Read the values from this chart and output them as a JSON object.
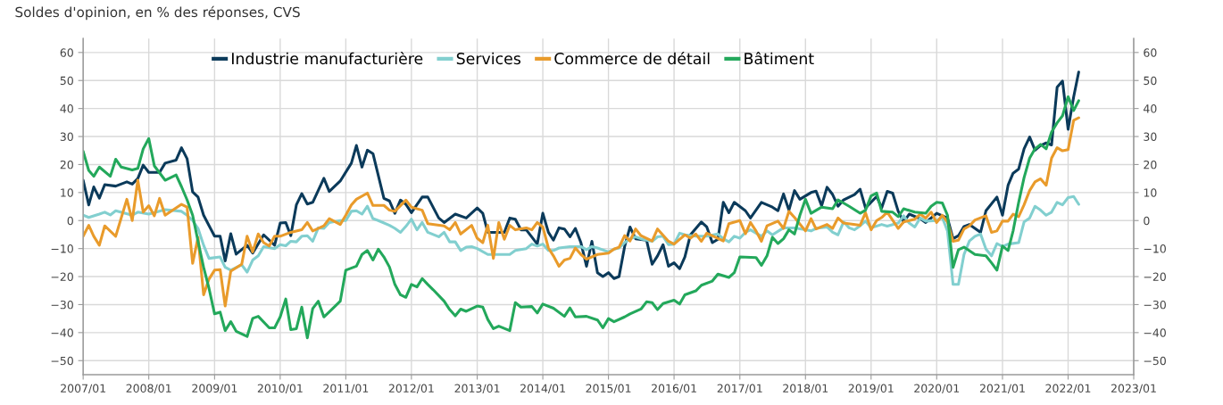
{
  "chart_data": {
    "type": "line",
    "title": "Soldes d'opinion, en % des réponses, CVS",
    "xlim": [
      "2007-01",
      "2023-01"
    ],
    "xticks": [
      {
        "value": "2007-01",
        "label": "2007/01"
      },
      {
        "value": "2008-01",
        "label": "2008/01"
      },
      {
        "value": "2009-01",
        "label": "2009/01"
      },
      {
        "value": "2010-01",
        "label": "2010/01"
      },
      {
        "value": "2011-01",
        "label": "2011/01"
      },
      {
        "value": "2012-01",
        "label": "2012/01"
      },
      {
        "value": "2013-01",
        "label": "2013/01"
      },
      {
        "value": "2014-01",
        "label": "2014/01"
      },
      {
        "value": "2015-01",
        "label": "2015/01"
      },
      {
        "value": "2016-01",
        "label": "2016/01"
      },
      {
        "value": "2017-01",
        "label": "2017/01"
      },
      {
        "value": "2018-01",
        "label": "2018/01"
      },
      {
        "value": "2019-01",
        "label": "2019/01"
      },
      {
        "value": "2020-01",
        "label": "2020/01"
      },
      {
        "value": "2021-01",
        "label": "2021/01"
      },
      {
        "value": "2022-01",
        "label": "2022/01"
      },
      {
        "value": "2023-01",
        "label": "2023/01"
      }
    ],
    "ylim": [
      -55,
      65
    ],
    "yticks": [
      {
        "value": -50,
        "label": "−50"
      },
      {
        "value": -40,
        "label": "−40"
      },
      {
        "value": -30,
        "label": "−30"
      },
      {
        "value": -20,
        "label": "−20"
      },
      {
        "value": -10,
        "label": "−10"
      },
      0,
      10,
      20,
      30,
      40,
      50,
      60
    ],
    "y2lim": [
      -55,
      65
    ],
    "y2ticks": [
      {
        "value": -50,
        "label": "−50"
      },
      {
        "value": -40,
        "label": "−40"
      },
      {
        "value": -30,
        "label": "−30"
      },
      {
        "value": -20,
        "label": "−20"
      },
      {
        "value": -10,
        "label": "−10"
      },
      0,
      10,
      20,
      30,
      40,
      50,
      60
    ],
    "grid": true,
    "legend": "top",
    "series": [
      {
        "name": "Industrie manufacturière",
        "color": "#0b3a5a",
        "x": [
          "2007-01",
          "2007-02",
          "2007-03",
          "2007-04",
          "2007-05",
          "2007-07",
          "2007-09",
          "2007-10",
          "2007-11",
          "2007-12",
          "2008-01",
          "2008-03",
          "2008-04",
          "2008-06",
          "2008-07",
          "2008-08",
          "2008-09",
          "2008-10",
          "2008-11",
          "2009-01",
          "2009-02",
          "2009-03",
          "2009-04",
          "2009-05",
          "2009-07",
          "2009-08",
          "2009-10",
          "2009-12",
          "2010-01",
          "2010-02",
          "2010-03",
          "2010-04",
          "2010-05",
          "2010-06",
          "2010-07",
          "2010-09",
          "2010-10",
          "2010-12",
          "2011-02",
          "2011-03",
          "2011-04",
          "2011-05",
          "2011-06",
          "2011-08",
          "2011-09",
          "2011-10",
          "2011-11",
          "2011-12",
          "2012-01",
          "2012-03",
          "2012-04",
          "2012-06",
          "2012-07",
          "2012-09",
          "2012-11",
          "2013-01",
          "2013-02",
          "2013-03",
          "2013-06",
          "2013-07",
          "2013-08",
          "2013-09",
          "2013-10",
          "2013-12",
          "2014-01",
          "2014-02",
          "2014-03",
          "2014-04",
          "2014-05",
          "2014-06",
          "2014-07",
          "2014-08",
          "2014-09",
          "2014-10",
          "2014-11",
          "2014-12",
          "2015-01",
          "2015-02",
          "2015-03",
          "2015-04",
          "2015-05",
          "2015-06",
          "2015-08",
          "2015-09",
          "2015-10",
          "2015-11",
          "2015-12",
          "2016-01",
          "2016-02",
          "2016-03",
          "2016-04",
          "2016-06",
          "2016-07",
          "2016-08",
          "2016-09",
          "2016-10",
          "2016-11",
          "2016-12",
          "2017-02",
          "2017-03",
          "2017-05",
          "2017-07",
          "2017-08",
          "2017-09",
          "2017-10",
          "2017-11",
          "2017-12",
          "2018-02",
          "2018-03",
          "2018-04",
          "2018-05",
          "2018-06",
          "2018-07",
          "2018-08",
          "2018-10",
          "2018-11",
          "2018-12",
          "2019-02",
          "2019-03",
          "2019-04",
          "2019-05",
          "2019-06",
          "2019-07",
          "2019-08",
          "2019-10",
          "2019-11",
          "2020-01",
          "2020-03",
          "2020-04",
          "2020-05",
          "2020-06",
          "2020-07",
          "2020-09",
          "2020-10",
          "2020-12",
          "2021-01",
          "2021-02",
          "2021-03",
          "2021-04",
          "2021-05",
          "2021-06",
          "2021-07",
          "2021-08",
          "2021-09",
          "2021-10",
          "2021-11",
          "2021-12",
          "2022-01",
          "2022-02",
          "2022-03"
        ],
        "values": [
          14.4,
          5.6,
          12,
          8,
          12.8,
          12.3,
          13.8,
          13,
          15,
          19.8,
          17.2,
          17.2,
          20.5,
          21.6,
          26,
          22.1,
          10.2,
          8.4,
          1.9,
          -5.6,
          -5.6,
          -14.4,
          -4.7,
          -12,
          -8.8,
          -11.6,
          -5.1,
          -8.8,
          -0.9,
          -0.7,
          -5.4,
          5.6,
          9.6,
          5.9,
          6.5,
          15.1,
          10.4,
          14.1,
          20.5,
          26.8,
          19.1,
          25.1,
          23.9,
          7.9,
          7,
          2.6,
          7.3,
          5.8,
          2.8,
          8.4,
          8.4,
          0.9,
          -0.7,
          2.3,
          0.9,
          4.5,
          2.6,
          -4.2,
          -4.2,
          0.9,
          0.5,
          -3.3,
          -3.3,
          -8.4,
          2.6,
          -4.2,
          -7,
          -2.6,
          -3,
          -5.8,
          -2.8,
          -7.9,
          -16.3,
          -7.4,
          -18.6,
          -20,
          -18.6,
          -20.7,
          -20,
          -9.3,
          -2.3,
          -6.5,
          -7,
          -15.6,
          -12.6,
          -8.6,
          -16.3,
          -15.1,
          -17.2,
          -13,
          -5.1,
          -0.5,
          -2.3,
          -7.9,
          -6.7,
          6.5,
          2.8,
          6.5,
          3.5,
          0.9,
          6.5,
          4.8,
          3.5,
          9.5,
          3.7,
          10.7,
          7.6,
          10,
          10.5,
          5.3,
          11.9,
          9.3,
          5.1,
          7.4,
          9.3,
          11.2,
          4.5,
          8.6,
          4.5,
          10.4,
          9.8,
          3.3,
          -0.5,
          2.3,
          0.7,
          -0.7,
          2.6,
          0.9,
          -6.5,
          -5.4,
          -2.1,
          -1.4,
          -4.2,
          3.5,
          8.4,
          1.9,
          12.6,
          16.9,
          18.4,
          25.6,
          29.8,
          25.1,
          26.8,
          27.7,
          27,
          47.6,
          49.8,
          32.6,
          44.2,
          53
        ]
      },
      {
        "name": "Services",
        "color": "#82cfcf",
        "x": [
          "2007-01",
          "2007-02",
          "2007-04",
          "2007-05",
          "2007-06",
          "2007-07",
          "2007-10",
          "2007-11",
          "2008-01",
          "2008-04",
          "2008-07",
          "2008-08",
          "2008-09",
          "2008-10",
          "2008-11",
          "2008-12",
          "2009-02",
          "2009-03",
          "2009-04",
          "2009-06",
          "2009-07",
          "2009-08",
          "2009-09",
          "2009-10",
          "2009-12",
          "2010-01",
          "2010-02",
          "2010-03",
          "2010-04",
          "2010-05",
          "2010-06",
          "2010-07",
          "2010-08",
          "2010-09",
          "2010-10",
          "2010-12",
          "2011-01",
          "2011-02",
          "2011-03",
          "2011-04",
          "2011-05",
          "2011-06",
          "2011-07",
          "2011-09",
          "2011-10",
          "2011-11",
          "2011-12",
          "2012-01",
          "2012-02",
          "2012-03",
          "2012-04",
          "2012-06",
          "2012-07",
          "2012-08",
          "2012-09",
          "2012-10",
          "2012-11",
          "2012-12",
          "2013-01",
          "2013-03",
          "2013-05",
          "2013-07",
          "2013-08",
          "2013-10",
          "2013-11",
          "2013-12",
          "2014-01",
          "2014-02",
          "2014-03",
          "2014-04",
          "2014-06",
          "2014-08",
          "2014-09",
          "2014-10",
          "2014-11",
          "2015-01",
          "2015-02",
          "2015-03",
          "2015-04",
          "2015-05",
          "2015-06",
          "2015-07",
          "2015-09",
          "2015-10",
          "2015-11",
          "2015-12",
          "2016-01",
          "2016-02",
          "2016-03",
          "2016-05",
          "2016-07",
          "2016-09",
          "2016-10",
          "2016-11",
          "2016-12",
          "2017-01",
          "2017-02",
          "2017-03",
          "2017-05",
          "2017-06",
          "2017-07",
          "2017-09",
          "2017-11",
          "2018-01",
          "2018-02",
          "2018-03",
          "2018-05",
          "2018-06",
          "2018-07",
          "2018-08",
          "2018-09",
          "2018-10",
          "2018-11",
          "2018-12",
          "2019-01",
          "2019-03",
          "2019-04",
          "2019-06",
          "2019-07",
          "2019-08",
          "2019-09",
          "2019-10",
          "2019-11",
          "2020-01",
          "2020-02",
          "2020-03",
          "2020-04",
          "2020-05",
          "2020-06",
          "2020-07",
          "2020-08",
          "2020-09",
          "2020-10",
          "2020-11",
          "2020-12",
          "2021-01",
          "2021-02",
          "2021-04",
          "2021-05",
          "2021-06",
          "2021-07",
          "2021-08",
          "2021-09",
          "2021-10",
          "2021-11",
          "2021-12",
          "2022-01",
          "2022-02",
          "2022-03"
        ],
        "values": [
          1.9,
          1.1,
          2.3,
          3,
          2,
          3.5,
          1.9,
          3,
          2.3,
          3.9,
          3.3,
          1.9,
          0,
          -2.8,
          -8.8,
          -13.5,
          -13,
          -16.7,
          -17.7,
          -15.8,
          -18.4,
          -14.1,
          -12.6,
          -9.3,
          -10,
          -8.6,
          -9,
          -7.4,
          -7.6,
          -5.6,
          -5.4,
          -7.4,
          -2.6,
          -2.8,
          -0.7,
          0,
          0,
          3.3,
          3.5,
          2.3,
          5.1,
          0.7,
          0,
          -1.7,
          -2.8,
          -4.2,
          -2.1,
          0.5,
          -3.3,
          -0.7,
          -4.2,
          -5.8,
          -4.2,
          -7.6,
          -7.6,
          -10.7,
          -9.5,
          -9.3,
          -10,
          -12.1,
          -12.1,
          -12.1,
          -10.7,
          -10,
          -8.4,
          -9.1,
          -8.4,
          -10.7,
          -10.7,
          -9.8,
          -9.3,
          -9.3,
          -10.4,
          -9.3,
          -9.8,
          -11.2,
          -10.2,
          -9.8,
          -7.9,
          -6.5,
          -5.8,
          -6.5,
          -7.4,
          -5.8,
          -5.6,
          -8.6,
          -8.4,
          -4.5,
          -5.1,
          -5.6,
          -5.6,
          -4.8,
          -6.5,
          -7.6,
          -5.6,
          -6.3,
          -4.2,
          -3.3,
          -5.6,
          -3.7,
          -5.1,
          -2.6,
          -2.6,
          -3.3,
          -3.7,
          -2.8,
          -2.3,
          -4.2,
          -5.1,
          -0.5,
          -2.6,
          -3.3,
          -1.9,
          -0.2,
          -2.6,
          -1.4,
          -2,
          -0.9,
          1.7,
          -0.9,
          -2.3,
          0.9,
          -0.2,
          0,
          1.1,
          -3.7,
          -22.8,
          -22.8,
          -12.1,
          -7.3,
          -5.6,
          -4.8,
          -10.2,
          -12.6,
          -8.2,
          -9.3,
          -8.4,
          -7.9,
          -0.5,
          0.9,
          5.1,
          3.7,
          1.9,
          3,
          6.5,
          5.6,
          8.2,
          8.6,
          5.8
        ]
      },
      {
        "name": "Commerce de détail",
        "color": "#e99b2b",
        "x": [
          "2007-01",
          "2007-02",
          "2007-03",
          "2007-04",
          "2007-05",
          "2007-07",
          "2007-09",
          "2007-10",
          "2007-11",
          "2007-12",
          "2008-01",
          "2008-02",
          "2008-03",
          "2008-04",
          "2008-07",
          "2008-08",
          "2008-09",
          "2008-10",
          "2008-11",
          "2008-12",
          "2009-01",
          "2009-02",
          "2009-03",
          "2009-04",
          "2009-06",
          "2009-07",
          "2009-08",
          "2009-09",
          "2009-10",
          "2009-11",
          "2009-12",
          "2010-01",
          "2010-03",
          "2010-05",
          "2010-06",
          "2010-07",
          "2010-09",
          "2010-10",
          "2010-12",
          "2011-01",
          "2011-02",
          "2011-03",
          "2011-05",
          "2011-06",
          "2011-08",
          "2011-09",
          "2011-10",
          "2011-12",
          "2012-01",
          "2012-03",
          "2012-04",
          "2012-07",
          "2012-08",
          "2012-09",
          "2012-10",
          "2012-12",
          "2013-01",
          "2013-02",
          "2013-03",
          "2013-04",
          "2013-05",
          "2013-06",
          "2013-07",
          "2013-08",
          "2013-10",
          "2013-11",
          "2013-12",
          "2014-01",
          "2014-02",
          "2014-03",
          "2014-04",
          "2014-05",
          "2014-06",
          "2014-07",
          "2014-08",
          "2014-09",
          "2014-11",
          "2015-01",
          "2015-02",
          "2015-03",
          "2015-04",
          "2015-05",
          "2015-06",
          "2015-07",
          "2015-09",
          "2015-10",
          "2015-12",
          "2016-01",
          "2016-03",
          "2016-04",
          "2016-05",
          "2016-06",
          "2016-07",
          "2016-10",
          "2016-11",
          "2017-01",
          "2017-02",
          "2017-03",
          "2017-04",
          "2017-05",
          "2017-06",
          "2017-08",
          "2017-09",
          "2017-10",
          "2017-11",
          "2018-01",
          "2018-02",
          "2018-03",
          "2018-05",
          "2018-06",
          "2018-07",
          "2018-08",
          "2018-11",
          "2018-12",
          "2019-01",
          "2019-02",
          "2019-03",
          "2019-04",
          "2019-06",
          "2019-07",
          "2019-09",
          "2019-10",
          "2019-11",
          "2019-12",
          "2020-01",
          "2020-02",
          "2020-03",
          "2020-04",
          "2020-05",
          "2020-06",
          "2020-07",
          "2020-08",
          "2020-10",
          "2020-11",
          "2020-12",
          "2021-01",
          "2021-02",
          "2021-03",
          "2021-04",
          "2021-05",
          "2021-06",
          "2021-07",
          "2021-08",
          "2021-09",
          "2021-10",
          "2021-11",
          "2021-12",
          "2022-01",
          "2022-02",
          "2022-03"
        ],
        "values": [
          -5.6,
          -1.7,
          -5.6,
          -8.8,
          -1.9,
          -5.6,
          7.6,
          0,
          14.4,
          3,
          5.3,
          1.7,
          7.9,
          1.9,
          5.8,
          4.8,
          -15.3,
          -6,
          -26.5,
          -20.9,
          -17.7,
          -17.5,
          -30.5,
          -18.1,
          -15.6,
          -5.6,
          -11.2,
          -4.8,
          -7.9,
          -9.1,
          -5.6,
          -5.6,
          -4.2,
          -3.3,
          -0.7,
          -3.7,
          -1.9,
          0.7,
          -1.4,
          1.9,
          5.6,
          7.6,
          9.8,
          5.4,
          5.4,
          3.7,
          3.3,
          7.3,
          4.8,
          3.7,
          -1.1,
          -1.9,
          -3.3,
          -0.7,
          -4.8,
          -1.7,
          -6.3,
          -7.9,
          -1.7,
          -13.5,
          -0.7,
          -6.7,
          -1.7,
          -3.3,
          -2.6,
          -3.3,
          -0.7,
          -2.3,
          -9.8,
          -12.6,
          -16.3,
          -14.1,
          -13.5,
          -9.8,
          -12.1,
          -13.8,
          -12.1,
          -11.6,
          -10.2,
          -9.5,
          -5.4,
          -7.3,
          -3,
          -5.4,
          -7.3,
          -3,
          -7.4,
          -8.4,
          -5.1,
          -6.3,
          -4.8,
          -7.4,
          -4.5,
          -7.3,
          -1.1,
          0,
          -4.7,
          -0.7,
          -3.7,
          -7.4,
          -1.9,
          -0.2,
          -2.8,
          3.3,
          1.1,
          -3.7,
          0.7,
          -3,
          -1.4,
          -2.8,
          0.9,
          -0.9,
          -1.7,
          2.8,
          -3.3,
          0,
          1.1,
          3,
          -2.8,
          -0.5,
          0.5,
          2.3,
          0.9,
          3,
          -0.7,
          1.9,
          -0.5,
          -7.4,
          -7,
          -3,
          -1.9,
          0.2,
          1.7,
          -4.2,
          -3.7,
          -0.2,
          -0.2,
          2.3,
          1.4,
          5.6,
          10.7,
          13.8,
          14.9,
          12.6,
          22.3,
          26,
          24.9,
          25.3,
          35.8,
          36.7
        ]
      },
      {
        "name": "Bâtiment",
        "color": "#23a85b",
        "x": [
          "2007-01",
          "2007-02",
          "2007-03",
          "2007-04",
          "2007-06",
          "2007-07",
          "2007-08",
          "2007-10",
          "2007-11",
          "2007-12",
          "2008-01",
          "2008-02",
          "2008-04",
          "2008-06",
          "2008-07",
          "2008-08",
          "2008-09",
          "2008-10",
          "2008-11",
          "2008-12",
          "2009-01",
          "2009-02",
          "2009-03",
          "2009-04",
          "2009-05",
          "2009-07",
          "2009-08",
          "2009-09",
          "2009-11",
          "2009-12",
          "2010-01",
          "2010-02",
          "2010-03",
          "2010-04",
          "2010-05",
          "2010-06",
          "2010-07",
          "2010-08",
          "2010-09",
          "2010-10",
          "2010-12",
          "2011-01",
          "2011-03",
          "2011-04",
          "2011-05",
          "2011-06",
          "2011-07",
          "2011-08",
          "2011-09",
          "2011-10",
          "2011-11",
          "2011-12",
          "2012-01",
          "2012-02",
          "2012-03",
          "2012-04",
          "2012-05",
          "2012-07",
          "2012-08",
          "2012-09",
          "2012-10",
          "2012-11",
          "2013-01",
          "2013-02",
          "2013-03",
          "2013-04",
          "2013-05",
          "2013-07",
          "2013-08",
          "2013-09",
          "2013-11",
          "2013-12",
          "2014-01",
          "2014-03",
          "2014-05",
          "2014-06",
          "2014-07",
          "2014-09",
          "2014-11",
          "2014-12",
          "2015-01",
          "2015-02",
          "2015-04",
          "2015-05",
          "2015-07",
          "2015-08",
          "2015-09",
          "2015-10",
          "2015-11",
          "2016-01",
          "2016-02",
          "2016-03",
          "2016-05",
          "2016-06",
          "2016-08",
          "2016-09",
          "2016-11",
          "2016-12",
          "2017-01",
          "2017-04",
          "2017-05",
          "2017-06",
          "2017-07",
          "2017-08",
          "2017-09",
          "2017-10",
          "2017-11",
          "2017-12",
          "2018-01",
          "2018-02",
          "2018-04",
          "2018-06",
          "2018-07",
          "2018-09",
          "2018-11",
          "2018-12",
          "2019-01",
          "2019-02",
          "2019-03",
          "2019-05",
          "2019-06",
          "2019-07",
          "2019-09",
          "2019-11",
          "2019-12",
          "2020-01",
          "2020-02",
          "2020-03",
          "2020-04",
          "2020-05",
          "2020-06",
          "2020-08",
          "2020-10",
          "2020-11",
          "2020-12",
          "2021-01",
          "2021-02",
          "2021-03",
          "2021-04",
          "2021-05",
          "2021-06",
          "2021-07",
          "2021-08",
          "2021-09",
          "2021-10",
          "2021-11",
          "2021-12",
          "2022-01",
          "2022-02",
          "2022-03"
        ],
        "values": [
          24.7,
          17.9,
          15.8,
          19.1,
          15.8,
          21.9,
          19.1,
          18.1,
          18.6,
          25.6,
          29.3,
          19.5,
          14.4,
          16.3,
          12.1,
          7.4,
          1.9,
          -7.4,
          -16.7,
          -24.2,
          -33.3,
          -32.7,
          -39.3,
          -36.1,
          -39.5,
          -41.4,
          -34.9,
          -34.2,
          -38.3,
          -38.3,
          -34.4,
          -28,
          -38.9,
          -38.6,
          -30.9,
          -41.9,
          -31.4,
          -28.8,
          -34.4,
          -32.6,
          -28.8,
          -17.7,
          -16.3,
          -12.1,
          -10.7,
          -14.1,
          -10.2,
          -13,
          -16.6,
          -22.8,
          -26.5,
          -27.4,
          -22.8,
          -23.7,
          -20.7,
          -22.8,
          -24.7,
          -28.8,
          -31.8,
          -34,
          -31.6,
          -32.4,
          -30.5,
          -30.9,
          -35.3,
          -38.6,
          -37.7,
          -39.3,
          -29.3,
          -30.9,
          -30.7,
          -33,
          -29.8,
          -31.3,
          -34.2,
          -31.2,
          -34.4,
          -34.2,
          -35.5,
          -38.3,
          -35,
          -36.1,
          -34.4,
          -33.3,
          -31.6,
          -29,
          -29.3,
          -31.8,
          -29.6,
          -28.4,
          -29.8,
          -26.5,
          -25.1,
          -23.1,
          -21.6,
          -19.1,
          -20.3,
          -18.6,
          -13,
          -13.2,
          -16,
          -12.6,
          -6,
          -8.2,
          -6.5,
          -3.3,
          -4.8,
          1.9,
          7.6,
          2.6,
          4.8,
          4.2,
          7.4,
          5.1,
          2.6,
          3.7,
          8.8,
          9.8,
          3.3,
          3,
          1.4,
          4.2,
          3,
          2.6,
          5.1,
          6.5,
          6.3,
          1.9,
          -16.7,
          -10.4,
          -9.5,
          -12.1,
          -12.6,
          -15.1,
          -17.7,
          -9.1,
          -10.7,
          -3.7,
          6.5,
          15.3,
          22.3,
          25.6,
          27.2,
          25.6,
          31.6,
          34.9,
          37.4,
          44.2,
          39.3,
          42.8
        ]
      }
    ]
  }
}
